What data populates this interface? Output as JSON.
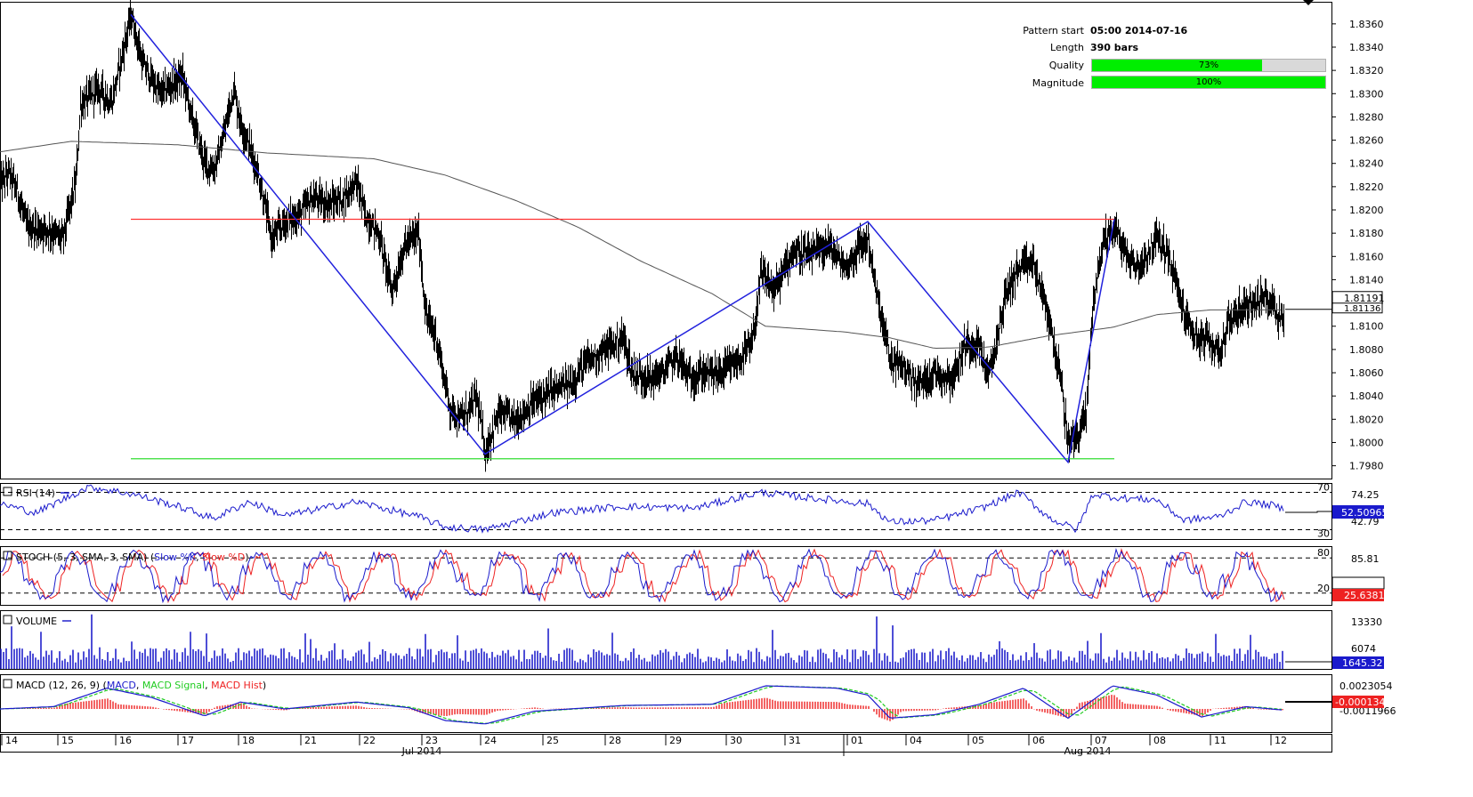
{
  "pattern_info": {
    "start_label": "Pattern start",
    "start_value": "05:00 2014-07-16",
    "length_label": "Length",
    "length_value": "390 bars",
    "quality_label": "Quality",
    "quality_text": "73%",
    "quality_value": 0.73,
    "magnitude_label": "Magnitude",
    "magnitude_text": "100%",
    "magnitude_value": 1.0
  },
  "colors": {
    "price_bars": "#000000",
    "sma": "#555555",
    "pattern_lines": "#2222dd",
    "resistance": "#ff3333",
    "support": "#33dd33",
    "rsi": "#1a1acc",
    "stoch_k": "#1a1acc",
    "stoch_d": "#ee2222",
    "volume": "#2222cc",
    "macd": "#1a1acc",
    "macd_signal": "#22cc22",
    "macd_hist": "#ee2222"
  },
  "chart_data": [
    {
      "type": "candlestick",
      "name": "price",
      "yticks": [
        "1.8360",
        "1.8340",
        "1.8320",
        "1.8300",
        "1.8280",
        "1.8260",
        "1.8240",
        "1.8220",
        "1.8200",
        "1.8180",
        "1.8160",
        "1.8140",
        "1.8120",
        "1.8100",
        "1.8080",
        "1.8060",
        "1.8040",
        "1.8020",
        "1.8000",
        "1.7980"
      ],
      "ylim": [
        1.7969,
        1.8379
      ],
      "last_price": "1.81191",
      "last_price_hidden": "1.81136",
      "anchors": [
        [
          0,
          1.8222
        ],
        [
          10,
          1.8232
        ],
        [
          20,
          1.8214
        ],
        [
          30,
          1.8185
        ],
        [
          55,
          1.8183
        ],
        [
          70,
          1.8175
        ],
        [
          85,
          1.8225
        ],
        [
          90,
          1.829
        ],
        [
          110,
          1.8305
        ],
        [
          125,
          1.8292
        ],
        [
          147,
          1.8368
        ],
        [
          160,
          1.8325
        ],
        [
          180,
          1.83
        ],
        [
          205,
          1.8315
        ],
        [
          215,
          1.828
        ],
        [
          230,
          1.824
        ],
        [
          240,
          1.8235
        ],
        [
          250,
          1.826
        ],
        [
          262,
          1.8305
        ],
        [
          270,
          1.8275
        ],
        [
          280,
          1.8255
        ],
        [
          290,
          1.823
        ],
        [
          305,
          1.8175
        ],
        [
          320,
          1.819
        ],
        [
          335,
          1.8195
        ],
        [
          350,
          1.821
        ],
        [
          370,
          1.8205
        ],
        [
          385,
          1.821
        ],
        [
          400,
          1.8225
        ],
        [
          410,
          1.8195
        ],
        [
          425,
          1.818
        ],
        [
          440,
          1.813
        ],
        [
          455,
          1.817
        ],
        [
          470,
          1.818
        ],
        [
          478,
          1.811
        ],
        [
          490,
          1.809
        ],
        [
          505,
          1.803
        ],
        [
          520,
          1.802
        ],
        [
          535,
          1.804
        ],
        [
          545,
          1.7992
        ],
        [
          560,
          1.8025
        ],
        [
          580,
          1.802
        ],
        [
          600,
          1.8035
        ],
        [
          620,
          1.8045
        ],
        [
          640,
          1.805
        ],
        [
          660,
          1.807
        ],
        [
          680,
          1.808
        ],
        [
          700,
          1.809
        ],
        [
          710,
          1.806
        ],
        [
          730,
          1.8055
        ],
        [
          745,
          1.806
        ],
        [
          760,
          1.8075
        ],
        [
          775,
          1.8055
        ],
        [
          790,
          1.806
        ],
        [
          810,
          1.806
        ],
        [
          830,
          1.807
        ],
        [
          845,
          1.8085
        ],
        [
          855,
          1.8145
        ],
        [
          870,
          1.813
        ],
        [
          890,
          1.8165
        ],
        [
          910,
          1.816
        ],
        [
          930,
          1.817
        ],
        [
          950,
          1.815
        ],
        [
          965,
          1.8168
        ],
        [
          975,
          1.8175
        ],
        [
          985,
          1.8125
        ],
        [
          1000,
          1.807
        ],
        [
          1015,
          1.8065
        ],
        [
          1030,
          1.805
        ],
        [
          1050,
          1.806
        ],
        [
          1070,
          1.8055
        ],
        [
          1085,
          1.8085
        ],
        [
          1100,
          1.8085
        ],
        [
          1110,
          1.8055
        ],
        [
          1120,
          1.809
        ],
        [
          1130,
          1.813
        ],
        [
          1145,
          1.815
        ],
        [
          1160,
          1.8155
        ],
        [
          1170,
          1.813
        ],
        [
          1180,
          1.81
        ],
        [
          1190,
          1.806
        ],
        [
          1200,
          1.8
        ],
        [
          1210,
          1.8005
        ],
        [
          1220,
          1.8025
        ],
        [
          1228,
          1.8125
        ],
        [
          1240,
          1.8175
        ],
        [
          1252,
          1.8185
        ],
        [
          1265,
          1.816
        ],
        [
          1280,
          1.815
        ],
        [
          1290,
          1.8165
        ],
        [
          1300,
          1.8175
        ],
        [
          1310,
          1.8165
        ],
        [
          1320,
          1.814
        ],
        [
          1330,
          1.811
        ],
        [
          1345,
          1.809
        ],
        [
          1360,
          1.8085
        ],
        [
          1372,
          1.808
        ],
        [
          1380,
          1.8105
        ],
        [
          1395,
          1.8115
        ],
        [
          1410,
          1.812
        ],
        [
          1425,
          1.8125
        ],
        [
          1435,
          1.811
        ],
        [
          1442,
          1.8105
        ]
      ],
      "sma_anchors": [
        [
          0,
          1.825
        ],
        [
          80,
          1.8259
        ],
        [
          200,
          1.8256
        ],
        [
          300,
          1.8249
        ],
        [
          420,
          1.8244
        ],
        [
          500,
          1.823
        ],
        [
          580,
          1.8208
        ],
        [
          650,
          1.8185
        ],
        [
          720,
          1.8156
        ],
        [
          800,
          1.8128
        ],
        [
          860,
          1.81
        ],
        [
          950,
          1.8095
        ],
        [
          1000,
          1.809
        ],
        [
          1050,
          1.8081
        ],
        [
          1110,
          1.8082
        ],
        [
          1180,
          1.8092
        ],
        [
          1250,
          1.8099
        ],
        [
          1300,
          1.811
        ],
        [
          1360,
          1.8114
        ],
        [
          1442,
          1.8114
        ]
      ],
      "pattern_lines": [
        [
          147,
          1.8368
        ],
        [
          545,
          1.799
        ],
        [
          975,
          1.819
        ],
        [
          1200,
          1.7983
        ],
        [
          1252,
          1.8192
        ]
      ],
      "resistance": {
        "x": [
          147,
          1252
        ],
        "y": 1.8192
      },
      "support": {
        "x": [
          147,
          1252
        ],
        "y": 1.7986
      }
    },
    {
      "type": "line",
      "name": "RSI (14)",
      "legend": "RSI (14)",
      "levels": [
        70,
        30
      ],
      "yticks": [
        "74.25",
        "42.79"
      ],
      "last_value": "52.50965",
      "ylim": [
        20,
        80
      ],
      "anchors": [
        [
          0,
          58
        ],
        [
          40,
          48
        ],
        [
          100,
          76
        ],
        [
          150,
          68
        ],
        [
          200,
          55
        ],
        [
          240,
          42
        ],
        [
          280,
          60
        ],
        [
          320,
          45
        ],
        [
          400,
          60
        ],
        [
          470,
          44
        ],
        [
          500,
          33
        ],
        [
          545,
          30
        ],
        [
          620,
          48
        ],
        [
          700,
          55
        ],
        [
          780,
          53
        ],
        [
          855,
          70
        ],
        [
          900,
          65
        ],
        [
          975,
          58
        ],
        [
          1000,
          38
        ],
        [
          1050,
          40
        ],
        [
          1100,
          52
        ],
        [
          1145,
          70
        ],
        [
          1180,
          42
        ],
        [
          1210,
          30
        ],
        [
          1228,
          68
        ],
        [
          1260,
          64
        ],
        [
          1300,
          62
        ],
        [
          1330,
          40
        ],
        [
          1370,
          44
        ],
        [
          1400,
          60
        ],
        [
          1430,
          56
        ],
        [
          1442,
          52
        ]
      ]
    },
    {
      "type": "line",
      "name": "STOCH (5, 3, SMA, 3, SMA)",
      "legend_prefix": "STOCH (5, 3, SMA, 3, SMA)",
      "legend_k": "Slow %K",
      "legend_d": "Slow %D",
      "levels": [
        80,
        20
      ],
      "yticks": [
        "85.81"
      ],
      "last_value": "25.6381",
      "ylim": [
        0,
        100
      ]
    },
    {
      "type": "bar",
      "name": "VOLUME",
      "legend": "VOLUME",
      "yticks": [
        "13330",
        "6074"
      ],
      "last_value": "1645.32",
      "ylim": [
        0,
        14000
      ]
    },
    {
      "type": "line",
      "name": "MACD (12, 26, 9)",
      "legend_prefix": "MACD (12, 26, 9)",
      "legend_macd": "MACD",
      "legend_signal": "MACD Signal",
      "legend_hist": "MACD Hist",
      "yticks": [
        "0.0023054",
        "-0.0011966"
      ],
      "last_value": "-0.0001344",
      "ylim": [
        -0.002,
        0.003
      ],
      "anchors": [
        [
          0,
          0.0
        ],
        [
          60,
          0.0002
        ],
        [
          120,
          0.0018
        ],
        [
          170,
          0.001
        ],
        [
          230,
          -0.0006
        ],
        [
          270,
          0.0006
        ],
        [
          320,
          0.0
        ],
        [
          400,
          0.0006
        ],
        [
          460,
          0.0001
        ],
        [
          500,
          -0.001
        ],
        [
          545,
          -0.0013
        ],
        [
          600,
          -0.0002
        ],
        [
          700,
          0.0003
        ],
        [
          800,
          0.0004
        ],
        [
          860,
          0.002
        ],
        [
          940,
          0.0018
        ],
        [
          975,
          0.0012
        ],
        [
          1000,
          -0.0008
        ],
        [
          1050,
          -0.0005
        ],
        [
          1100,
          0.0004
        ],
        [
          1150,
          0.0018
        ],
        [
          1200,
          -0.0008
        ],
        [
          1250,
          0.002
        ],
        [
          1300,
          0.0012
        ],
        [
          1350,
          -0.0007
        ],
        [
          1400,
          0.0002
        ],
        [
          1442,
          -0.0001
        ]
      ]
    },
    {
      "type": "axis",
      "name": "time-axis",
      "day_labels": [
        "14",
        "15",
        "16",
        "17",
        "18",
        "21",
        "22",
        "23",
        "24",
        "25",
        "28",
        "29",
        "30",
        "31",
        "01",
        "04",
        "05",
        "06",
        "07",
        "08",
        "11",
        "12"
      ],
      "month_labels": [
        "Jul 2014",
        "Aug 2014"
      ]
    }
  ]
}
